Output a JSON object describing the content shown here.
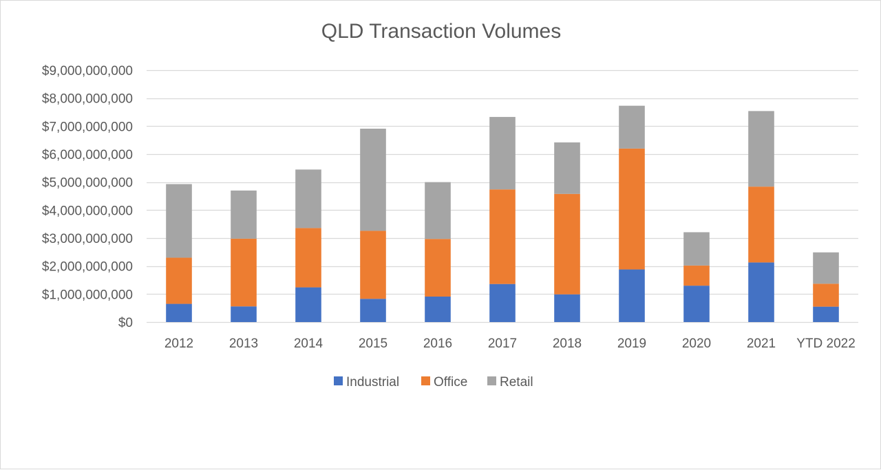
{
  "chart_data": {
    "type": "bar",
    "stacked": true,
    "title": "QLD Transaction Volumes",
    "xlabel": "",
    "ylabel": "",
    "categories": [
      "2012",
      "2013",
      "2014",
      "2015",
      "2016",
      "2017",
      "2018",
      "2019",
      "2020",
      "2021",
      "YTD 2022"
    ],
    "series": [
      {
        "name": "Industrial",
        "color": "#4472c4",
        "values": [
          650000000,
          560000000,
          1240000000,
          830000000,
          910000000,
          1360000000,
          990000000,
          1880000000,
          1300000000,
          2130000000,
          550000000
        ]
      },
      {
        "name": "Office",
        "color": "#ed7d31",
        "values": [
          1650000000,
          2420000000,
          2120000000,
          2430000000,
          2060000000,
          3380000000,
          3590000000,
          4320000000,
          720000000,
          2710000000,
          820000000
        ]
      },
      {
        "name": "Retail",
        "color": "#a5a5a5",
        "values": [
          2630000000,
          1720000000,
          2090000000,
          3650000000,
          2030000000,
          2590000000,
          1840000000,
          1530000000,
          1190000000,
          2700000000,
          1120000000
        ]
      }
    ],
    "ylim": [
      0,
      9000000000
    ],
    "yticks": [
      0,
      1000000000,
      2000000000,
      3000000000,
      4000000000,
      5000000000,
      6000000000,
      7000000000,
      8000000000,
      9000000000
    ],
    "ytick_labels": [
      "$0",
      "$1,000,000,000",
      "$2,000,000,000",
      "$3,000,000,000",
      "$4,000,000,000",
      "$5,000,000,000",
      "$6,000,000,000",
      "$7,000,000,000",
      "$8,000,000,000",
      "$9,000,000,000"
    ],
    "grid": true,
    "legend_position": "bottom",
    "colors": {
      "gridline": "#d9d9d9",
      "text": "#595959"
    }
  }
}
